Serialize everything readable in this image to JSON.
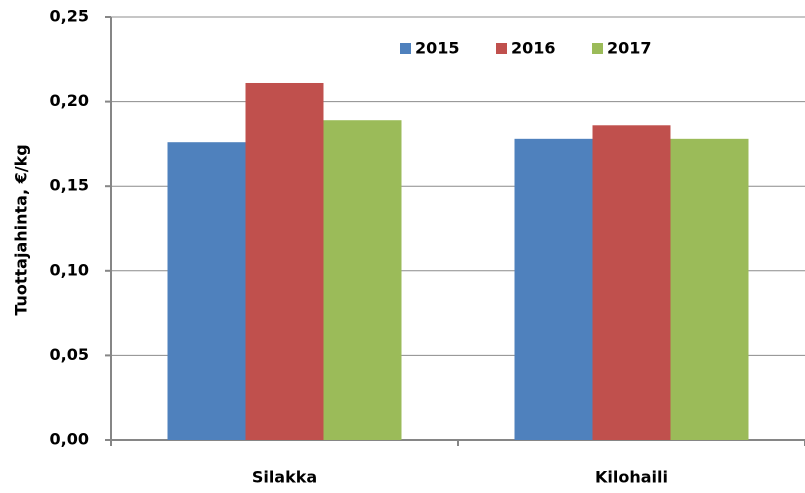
{
  "chart_data": {
    "type": "bar",
    "y_label": "Tuottajahinta, €/kg",
    "categories": [
      "Silakka",
      "Kilohaili"
    ],
    "series": [
      {
        "name": "2015",
        "color": "#4f81bd",
        "values": [
          0.176,
          0.178
        ]
      },
      {
        "name": "2016",
        "color": "#c0504d",
        "values": [
          0.211,
          0.186
        ]
      },
      {
        "name": "2017",
        "color": "#9bbb59",
        "values": [
          0.189,
          0.178
        ]
      }
    ],
    "ylim": [
      0,
      0.25
    ],
    "yticks": [
      {
        "value": 0,
        "label": "0,00"
      },
      {
        "value": 0.05,
        "label": "0,05"
      },
      {
        "value": 0.1,
        "label": "0,10"
      },
      {
        "value": 0.15,
        "label": "0,15"
      },
      {
        "value": 0.2,
        "label": "0,20"
      },
      {
        "value": 0.25,
        "label": "0,25"
      }
    ],
    "grid": true
  }
}
